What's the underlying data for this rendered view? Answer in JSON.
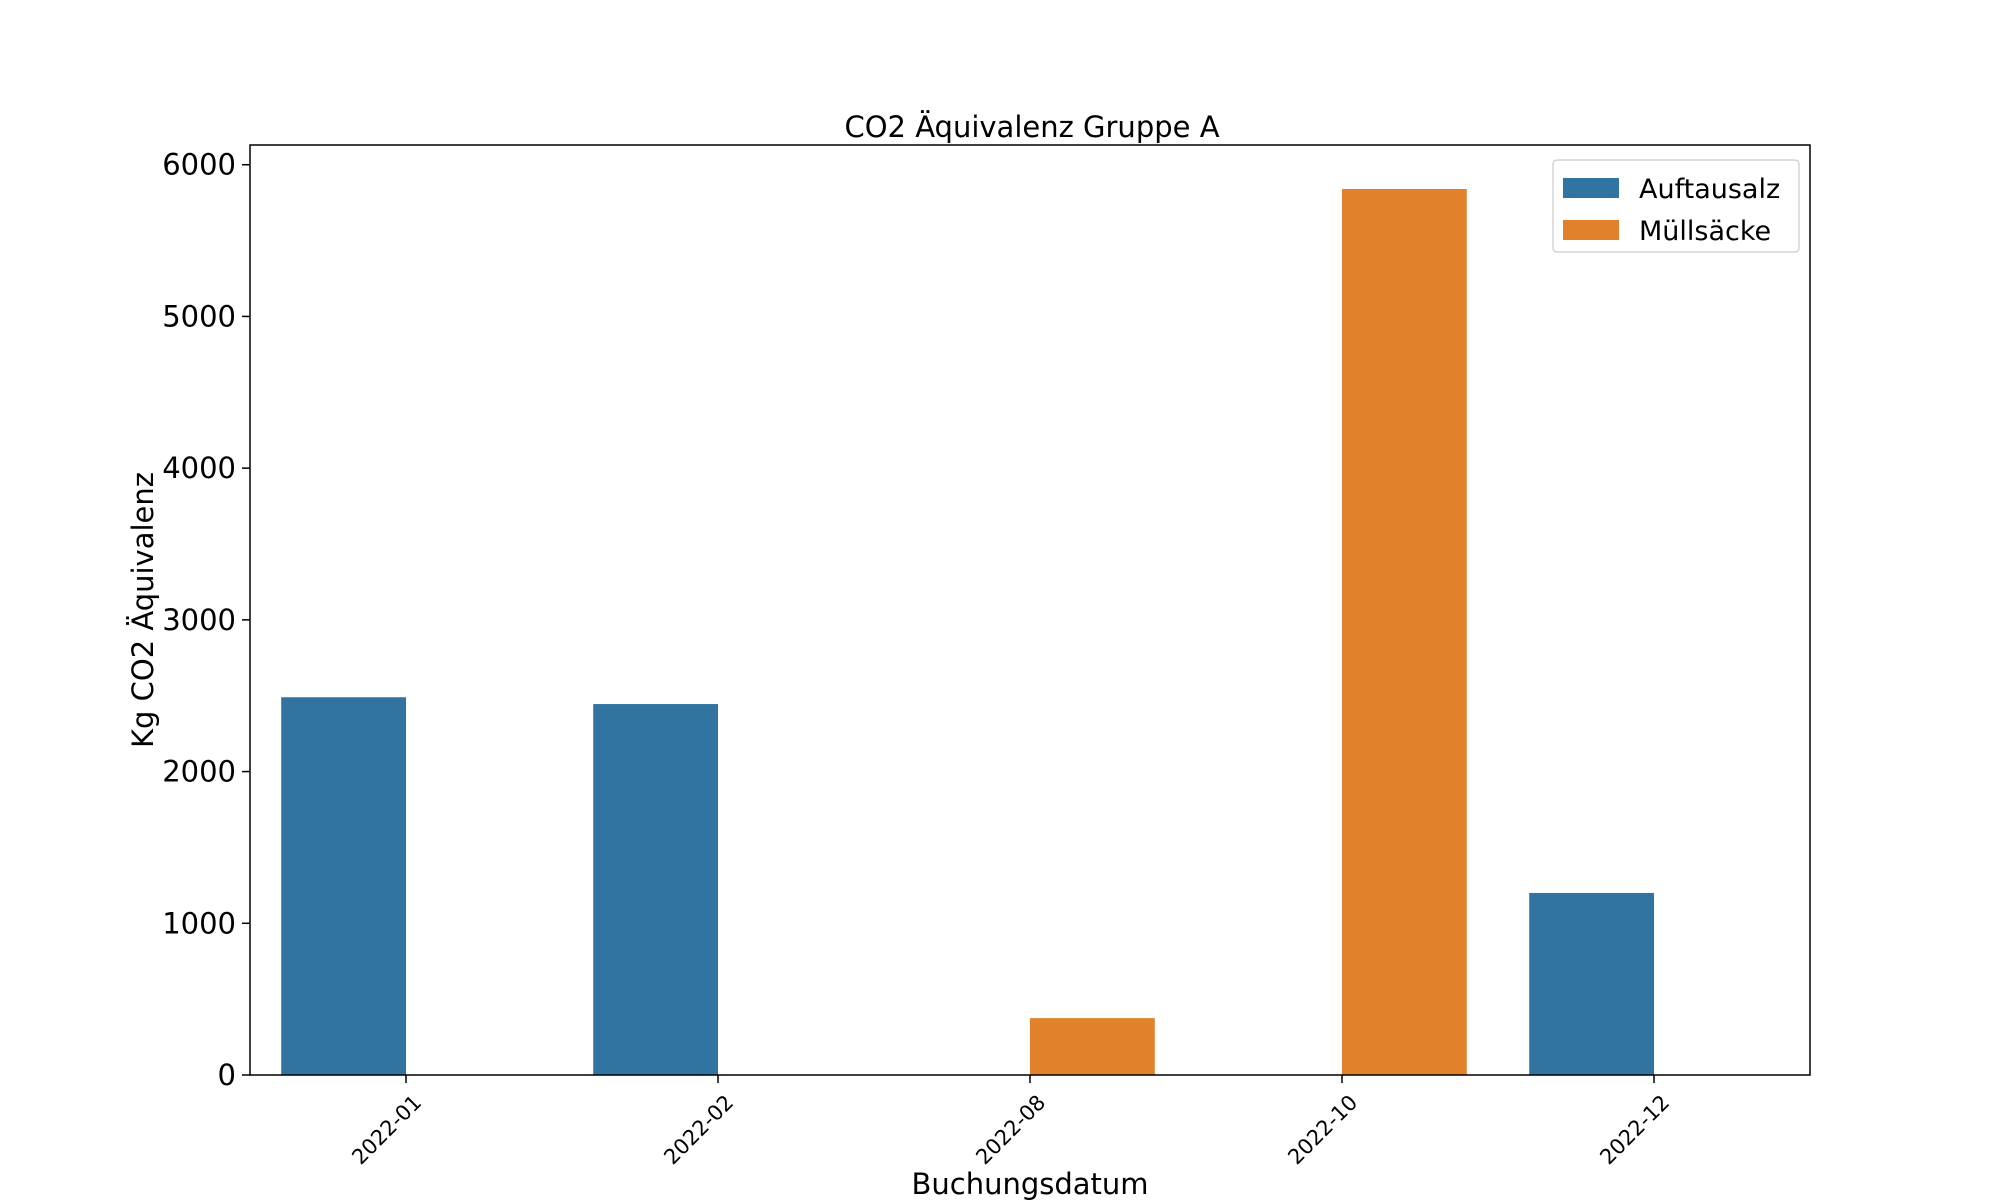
{
  "chart_data": {
    "type": "bar",
    "title": "CO2 Äquivalenz Gruppe A",
    "xlabel": "Buchungsdatum",
    "ylabel": "Kg CO2 Äquivalenz",
    "categories": [
      "2022-01",
      "2022-02",
      "2022-08",
      "2022-10",
      "2022-12"
    ],
    "series": [
      {
        "name": "Auftausalz",
        "color": "#3274a1",
        "values": [
          2490,
          2445,
          null,
          null,
          1200
        ]
      },
      {
        "name": "Müllsäcke",
        "color": "#e1812c",
        "values": [
          null,
          null,
          375,
          5840,
          null
        ]
      }
    ],
    "ylim": [
      0,
      6130
    ],
    "yticks": [
      0,
      1000,
      2000,
      3000,
      4000,
      5000,
      6000
    ],
    "grid": false,
    "legend_position": "top-right"
  }
}
